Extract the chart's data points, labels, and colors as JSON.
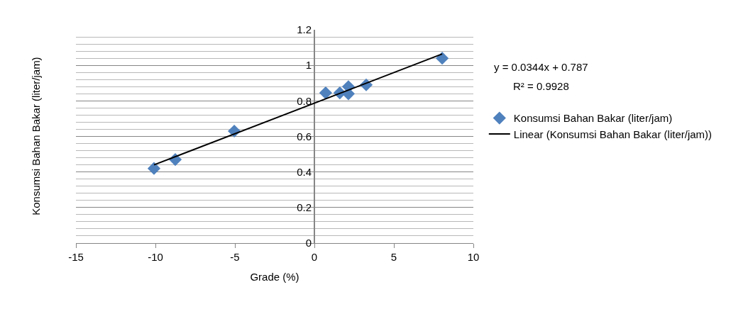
{
  "chart_data": {
    "type": "scatter",
    "xlabel": "Grade (%)",
    "ylabel": "Konsumsi Bahan Bakar (liter/jam)",
    "x": [
      -10.09,
      -8.75,
      -5.04,
      0.71,
      1.6,
      2.14,
      2.14,
      3.26,
      8.04
    ],
    "series": [
      {
        "name": "Konsumsi Bahan Bakar (liter/jam)",
        "color": "#4f81bd",
        "values": [
          0.42,
          0.47,
          0.63,
          0.845,
          0.845,
          0.88,
          0.84,
          0.89,
          1.04
        ]
      },
      {
        "type": "line",
        "name": "Linear (Konsumsi Bahan Bakar (liter/jam))",
        "color": "#000000",
        "x": [
          -10.09,
          8.04
        ],
        "values": [
          0.44,
          1.064
        ],
        "marker": "none"
      }
    ],
    "annotations": [
      "y = 0.0344x + 0.787",
      "R² = 0.9928"
    ],
    "xlim": [
      -15,
      10
    ],
    "xticks": [
      -15,
      -10,
      -5,
      0,
      5,
      10
    ],
    "ylim": [
      0,
      1.2
    ],
    "yticks": [
      0,
      0.2,
      0.4,
      0.6,
      0.8,
      1,
      1.2
    ],
    "grid": "y",
    "legend": "right",
    "marker": "diamond"
  }
}
